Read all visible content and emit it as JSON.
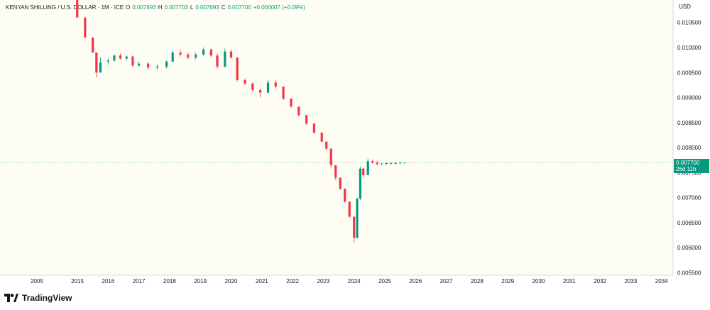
{
  "header": {
    "symbol": "KENYAN SHILLING / U.S. DOLLAR · 1M · ICE",
    "open_label": "O",
    "open": "0.007693",
    "high_label": "H",
    "high": "0.007703",
    "low_label": "L",
    "low": "0.007693",
    "close_label": "C",
    "close": "0.007700",
    "change": "+0.000007 (+0.09%)"
  },
  "brand": {
    "name": "TradingView"
  },
  "colors": {
    "up": "#089981",
    "down": "#f23645",
    "bg": "#fdfdf4",
    "last_line": "#089981"
  },
  "price_tag": {
    "value": "0.007700",
    "countdown": "26d 11h"
  },
  "chart_data": {
    "type": "candlestick",
    "currency": "USD",
    "y_ticks": [
      "0.010500",
      "0.010000",
      "0.009500",
      "0.009000",
      "0.008500",
      "0.008000",
      "0.007500",
      "0.007000",
      "0.006500",
      "0.006000",
      "0.005500"
    ],
    "x_ticks": [
      "2005",
      "2015",
      "2016",
      "2017",
      "2018",
      "2019",
      "2020",
      "2021",
      "2022",
      "2023",
      "2024",
      "2025",
      "2026",
      "2027",
      "2028",
      "2029",
      "2030",
      "2031",
      "2032",
      "2033",
      "2034"
    ],
    "ylim": [
      0.00545,
      0.01095
    ],
    "last_price": 0.0077,
    "series": [
      {
        "t": 2014.95,
        "o": 0.01095,
        "h": 0.01095,
        "l": 0.0106,
        "c": 0.0106
      },
      {
        "t": 2015.25,
        "o": 0.0106,
        "h": 0.0106,
        "l": 0.0102,
        "c": 0.0102
      },
      {
        "t": 2015.5,
        "o": 0.0102,
        "h": 0.0102,
        "l": 0.0099,
        "c": 0.0099
      },
      {
        "t": 2015.62,
        "o": 0.0099,
        "h": 0.0099,
        "l": 0.0094,
        "c": 0.0095
      },
      {
        "t": 2015.75,
        "o": 0.0095,
        "h": 0.0098,
        "l": 0.0095,
        "c": 0.0097
      },
      {
        "t": 2016.0,
        "o": 0.00972,
        "h": 0.00978,
        "l": 0.00966,
        "c": 0.00974
      },
      {
        "t": 2016.2,
        "o": 0.00974,
        "h": 0.00986,
        "l": 0.00972,
        "c": 0.00984
      },
      {
        "t": 2016.4,
        "o": 0.00984,
        "h": 0.00988,
        "l": 0.00976,
        "c": 0.00978
      },
      {
        "t": 2016.6,
        "o": 0.00978,
        "h": 0.00984,
        "l": 0.00974,
        "c": 0.00982
      },
      {
        "t": 2016.8,
        "o": 0.00982,
        "h": 0.00984,
        "l": 0.00962,
        "c": 0.00964
      },
      {
        "t": 2017.0,
        "o": 0.00964,
        "h": 0.00972,
        "l": 0.00962,
        "c": 0.00968
      },
      {
        "t": 2017.3,
        "o": 0.00968,
        "h": 0.0097,
        "l": 0.00956,
        "c": 0.0096
      },
      {
        "t": 2017.6,
        "o": 0.0096,
        "h": 0.00966,
        "l": 0.00956,
        "c": 0.00962
      },
      {
        "t": 2017.9,
        "o": 0.00962,
        "h": 0.00974,
        "l": 0.00958,
        "c": 0.00972
      },
      {
        "t": 2018.1,
        "o": 0.00972,
        "h": 0.00994,
        "l": 0.0097,
        "c": 0.0099
      },
      {
        "t": 2018.35,
        "o": 0.0099,
        "h": 0.00996,
        "l": 0.00982,
        "c": 0.00986
      },
      {
        "t": 2018.6,
        "o": 0.00986,
        "h": 0.0099,
        "l": 0.00976,
        "c": 0.0098
      },
      {
        "t": 2018.85,
        "o": 0.0098,
        "h": 0.0099,
        "l": 0.00976,
        "c": 0.00986
      },
      {
        "t": 2019.1,
        "o": 0.00986,
        "h": 0.01,
        "l": 0.00984,
        "c": 0.00996
      },
      {
        "t": 2019.35,
        "o": 0.00996,
        "h": 0.00998,
        "l": 0.0098,
        "c": 0.00984
      },
      {
        "t": 2019.55,
        "o": 0.00984,
        "h": 0.00988,
        "l": 0.00958,
        "c": 0.00962
      },
      {
        "t": 2019.8,
        "o": 0.00962,
        "h": 0.00998,
        "l": 0.0096,
        "c": 0.00992
      },
      {
        "t": 2020.0,
        "o": 0.00992,
        "h": 0.00996,
        "l": 0.00978,
        "c": 0.0098
      },
      {
        "t": 2020.2,
        "o": 0.0098,
        "h": 0.0098,
        "l": 0.00932,
        "c": 0.00935
      },
      {
        "t": 2020.45,
        "o": 0.00935,
        "h": 0.00938,
        "l": 0.00925,
        "c": 0.00928
      },
      {
        "t": 2020.7,
        "o": 0.00928,
        "h": 0.0093,
        "l": 0.00912,
        "c": 0.00915
      },
      {
        "t": 2020.95,
        "o": 0.00915,
        "h": 0.00918,
        "l": 0.009,
        "c": 0.0091
      },
      {
        "t": 2021.2,
        "o": 0.0091,
        "h": 0.00935,
        "l": 0.00908,
        "c": 0.0093
      },
      {
        "t": 2021.45,
        "o": 0.0093,
        "h": 0.00935,
        "l": 0.00918,
        "c": 0.00922
      },
      {
        "t": 2021.7,
        "o": 0.00922,
        "h": 0.00922,
        "l": 0.00895,
        "c": 0.00898
      },
      {
        "t": 2021.95,
        "o": 0.00898,
        "h": 0.00898,
        "l": 0.0088,
        "c": 0.00882
      },
      {
        "t": 2022.2,
        "o": 0.00882,
        "h": 0.00882,
        "l": 0.00862,
        "c": 0.00865
      },
      {
        "t": 2022.45,
        "o": 0.00865,
        "h": 0.00865,
        "l": 0.00845,
        "c": 0.00848
      },
      {
        "t": 2022.7,
        "o": 0.00848,
        "h": 0.00848,
        "l": 0.00828,
        "c": 0.0083
      },
      {
        "t": 2022.95,
        "o": 0.0083,
        "h": 0.0083,
        "l": 0.0081,
        "c": 0.00812
      },
      {
        "t": 2023.1,
        "o": 0.00812,
        "h": 0.00812,
        "l": 0.00795,
        "c": 0.00798
      },
      {
        "t": 2023.25,
        "o": 0.00798,
        "h": 0.00798,
        "l": 0.0076,
        "c": 0.00765
      },
      {
        "t": 2023.4,
        "o": 0.00765,
        "h": 0.00765,
        "l": 0.00735,
        "c": 0.0074
      },
      {
        "t": 2023.55,
        "o": 0.0074,
        "h": 0.0074,
        "l": 0.00715,
        "c": 0.00718
      },
      {
        "t": 2023.7,
        "o": 0.00718,
        "h": 0.00718,
        "l": 0.0069,
        "c": 0.00692
      },
      {
        "t": 2023.85,
        "o": 0.00692,
        "h": 0.00692,
        "l": 0.0066,
        "c": 0.00662
      },
      {
        "t": 2024.0,
        "o": 0.00662,
        "h": 0.00662,
        "l": 0.0061,
        "c": 0.0062
      },
      {
        "t": 2024.1,
        "o": 0.0062,
        "h": 0.007,
        "l": 0.00618,
        "c": 0.00698
      },
      {
        "t": 2024.2,
        "o": 0.00698,
        "h": 0.00762,
        "l": 0.00695,
        "c": 0.00758
      },
      {
        "t": 2024.3,
        "o": 0.00758,
        "h": 0.0076,
        "l": 0.0074,
        "c": 0.00745
      },
      {
        "t": 2024.45,
        "o": 0.00745,
        "h": 0.00778,
        "l": 0.00745,
        "c": 0.00773
      },
      {
        "t": 2024.6,
        "o": 0.00773,
        "h": 0.00776,
        "l": 0.00768,
        "c": 0.0077
      },
      {
        "t": 2024.75,
        "o": 0.0077,
        "h": 0.00774,
        "l": 0.00764,
        "c": 0.00767
      },
      {
        "t": 2024.9,
        "o": 0.00767,
        "h": 0.0077,
        "l": 0.00765,
        "c": 0.00768
      },
      {
        "t": 2025.05,
        "o": 0.00768,
        "h": 0.00771,
        "l": 0.00765,
        "c": 0.00769
      },
      {
        "t": 2025.2,
        "o": 0.00769,
        "h": 0.00771,
        "l": 0.00766,
        "c": 0.00768
      },
      {
        "t": 2025.35,
        "o": 0.00768,
        "h": 0.00771,
        "l": 0.00767,
        "c": 0.00769
      },
      {
        "t": 2025.5,
        "o": 0.00769,
        "h": 0.00771,
        "l": 0.00767,
        "c": 0.0077
      },
      {
        "t": 2025.65,
        "o": 0.007693,
        "h": 0.007703,
        "l": 0.007693,
        "c": 0.0077
      }
    ]
  }
}
